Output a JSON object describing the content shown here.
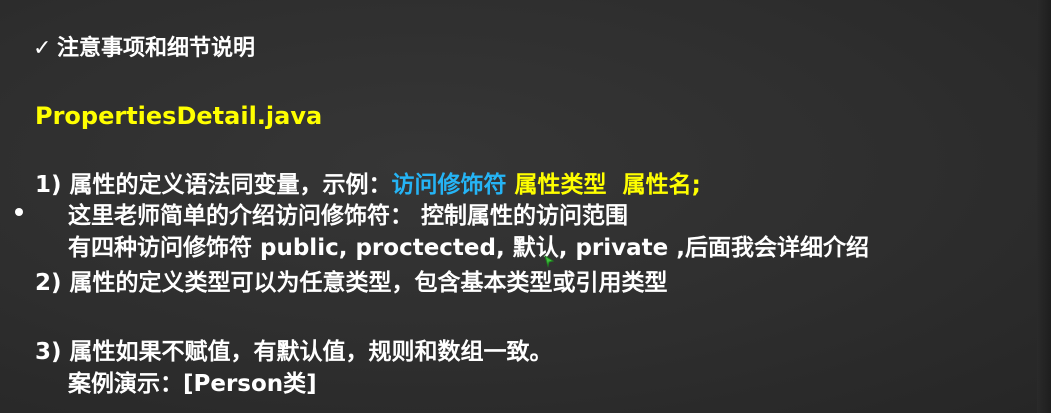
{
  "slide": {
    "heading": "注意事项和细节说明",
    "filename": "PropertiesDetail.java",
    "item1": {
      "text": "1) 属性的定义语法同变量，示例：",
      "access": "访问修饰符",
      "type": "属性类型",
      "name": "属性名;"
    },
    "sub1": "这里老师简单的介绍访问修饰符： 控制属性的访问范围",
    "sub2": "有四种访问修饰符 public, proctected, 默认, private ,后面我会详细介绍",
    "item2": "2) 属性的定义类型可以为任意类型，包含基本类型或引用类型",
    "item3": "3) 属性如果不赋值，有默认值，规则和数组一致。",
    "demo": "案例演示：[Person类]"
  },
  "icons": {
    "heading_marker": "check-icon",
    "bullet": "bullet-dot-icon",
    "cursor": "mouse-cursor-icon"
  },
  "colors": {
    "background": "#2f2f2f",
    "text": "#ffffff",
    "highlight_yellow": "#ffff00",
    "highlight_cyan": "#25b4f5"
  }
}
